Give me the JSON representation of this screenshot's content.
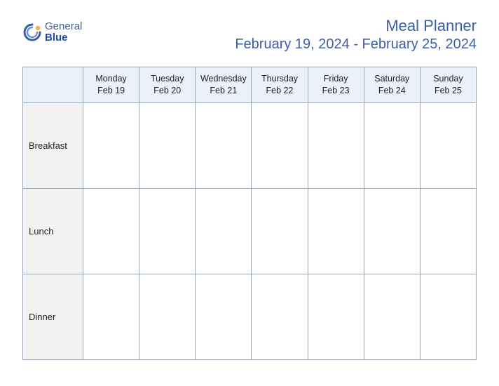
{
  "logo": {
    "word1": "General",
    "word2": "Blue",
    "swirl_color_outer": "#3a5fa8",
    "swirl_color_inner": "#6b8fd4",
    "dot_color": "#f4b23f"
  },
  "header": {
    "title": "Meal Planner",
    "date_range": "February 19, 2024 - February 25, 2024",
    "title_color": "#3a5fa8"
  },
  "table": {
    "header_bg": "#eaf1fa",
    "row_label_bg": "#f2f2f2",
    "border_color": "#9aa4b2",
    "days": [
      {
        "name": "Monday",
        "date": "Feb 19"
      },
      {
        "name": "Tuesday",
        "date": "Feb 20"
      },
      {
        "name": "Wednesday",
        "date": "Feb 21"
      },
      {
        "name": "Thursday",
        "date": "Feb 22"
      },
      {
        "name": "Friday",
        "date": "Feb 23"
      },
      {
        "name": "Saturday",
        "date": "Feb 24"
      },
      {
        "name": "Sunday",
        "date": "Feb 25"
      }
    ],
    "meals": [
      "Breakfast",
      "Lunch",
      "Dinner"
    ],
    "cells": [
      [
        "",
        "",
        "",
        "",
        "",
        "",
        ""
      ],
      [
        "",
        "",
        "",
        "",
        "",
        "",
        ""
      ],
      [
        "",
        "",
        "",
        "",
        "",
        "",
        ""
      ]
    ]
  }
}
